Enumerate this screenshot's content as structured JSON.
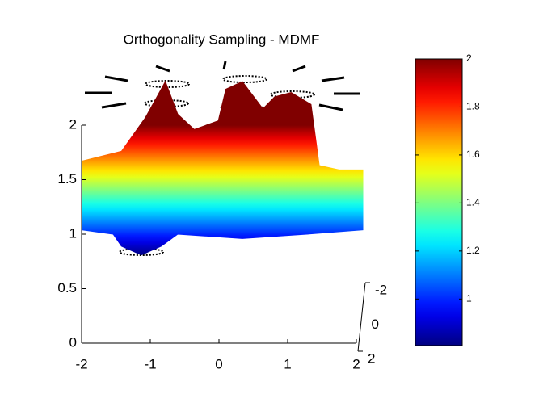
{
  "chart_data": {
    "type": "surface",
    "title": "Orthogonality Sampling - MDMF",
    "colormap": "jet",
    "xlim": [
      -2,
      2
    ],
    "xticks": [
      -2,
      -1,
      0,
      1,
      2
    ],
    "ylim": [
      -2,
      2
    ],
    "yticks": [
      -2,
      0,
      2
    ],
    "zlim": [
      0,
      2
    ],
    "zticks": [
      0,
      0.5,
      1,
      1.5,
      2
    ],
    "clim": [
      0.806,
      2
    ],
    "cticks": [
      1,
      1.2,
      1.4,
      1.6,
      1.8,
      2
    ],
    "top_edge": {
      "x": [
        -2,
        -1.42,
        -1.07,
        -0.78,
        -0.6,
        -0.36,
        -0.01,
        0.1,
        0.34,
        0.64,
        0.81,
        1.05,
        1.34,
        1.46,
        1.75,
        2.1
      ],
      "z": [
        1.67,
        1.76,
        2.07,
        2.4,
        2.1,
        1.96,
        2.04,
        2.33,
        2.4,
        2.15,
        2.26,
        2.3,
        2.19,
        1.63,
        1.59,
        1.59
      ]
    },
    "bottom_edge": {
      "x": [
        -2,
        -1.54,
        -1.42,
        -1.13,
        -0.84,
        -0.6,
        0.34,
        1.28,
        2.1
      ],
      "z": [
        1.04,
        1.0,
        0.89,
        0.81,
        0.89,
        1.0,
        0.96,
        1.0,
        1.04
      ]
    }
  }
}
